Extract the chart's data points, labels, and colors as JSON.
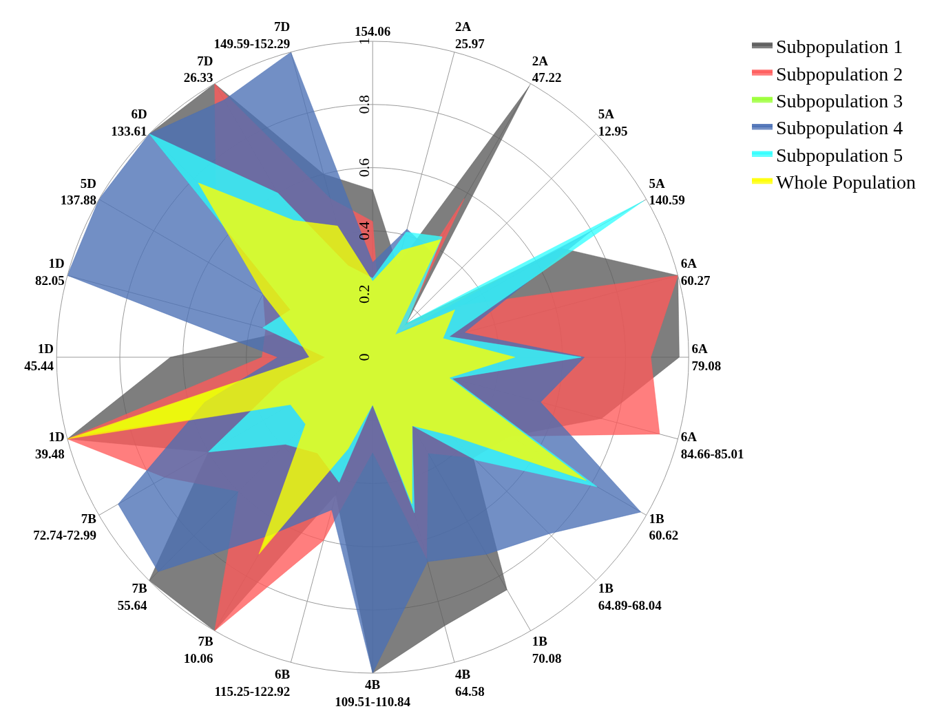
{
  "chart_data": {
    "type": "radar",
    "categories": [
      "154.06",
      "2A\n25.97",
      "2A\n47.22",
      "5A\n12.95",
      "5A\n140.59",
      "6A\n60.27",
      "6A\n79.08",
      "6A\n84.66-85.01",
      "1B\n60.62",
      "1B\n64.89-68.04",
      "1B\n70.08",
      "4B\n64.58",
      "4B\n109.51-110.84",
      "6B\n115.25-122.92",
      "7B\n10.06",
      "7B\n55.64",
      "7B\n72.74-72.99",
      "1D\n39.48",
      "1D\n45.44",
      "1D\n82.05",
      "5D\n137.88",
      "6D\n133.61",
      "7D\n26.33",
      "7D\n149.59-152.29"
    ],
    "series": [
      {
        "name": "Subpopulation 1",
        "color": "#5a5a5a",
        "values": [
          0.53,
          0.3,
          0.99,
          0.15,
          0.69,
          1.0,
          0.97,
          0.75,
          0.5,
          0.45,
          0.85,
          0.88,
          1.0,
          0.45,
          1.0,
          1.0,
          0.6,
          1.0,
          0.64,
          0.3,
          0.3,
          1.0,
          1.0,
          0.6
        ]
      },
      {
        "name": "Subpopulation 2",
        "color": "#ff5a5a",
        "values": [
          0.43,
          0.1,
          0.58,
          0.14,
          0.33,
          1.0,
          0.88,
          0.94,
          0.5,
          0.45,
          0.35,
          0.66,
          0.3,
          0.6,
          1.0,
          0.6,
          0.76,
          1.0,
          0.35,
          0.35,
          0.4,
          0.7,
          1.0,
          0.52
        ]
      },
      {
        "name": "Subpopulation 3",
        "color": "#99ff33",
        "values": [
          0.24,
          0.35,
          0.43,
          0.1,
          0.3,
          0.23,
          0.45,
          0.25,
          0.8,
          0.35,
          0.25,
          0.48,
          0.15,
          0.3,
          0.7,
          0.3,
          0.3,
          0.95,
          0.2,
          0.25,
          0.4,
          0.78,
          0.5,
          0.43
        ]
      },
      {
        "name": "Subpopulation 4",
        "color": "#4a6fb5",
        "values": [
          0.3,
          0.42,
          0.38,
          0.1,
          0.8,
          0.3,
          0.67,
          0.55,
          0.98,
          0.79,
          0.72,
          0.67,
          1.0,
          0.5,
          0.65,
          0.96,
          0.93,
          0.55,
          0.3,
          1.0,
          1.0,
          1.0,
          0.94,
          1.0
        ]
      },
      {
        "name": "Subpopulation 5",
        "color": "#33ffff",
        "values": [
          0.25,
          0.41,
          0.44,
          0.15,
          0.99,
          0.25,
          0.66,
          0.26,
          0.82,
          0.46,
          0.25,
          0.51,
          0.15,
          0.41,
          0.35,
          0.39,
          0.6,
          0.3,
          0.15,
          0.36,
          0.3,
          1.0,
          0.6,
          0.3
        ]
      },
      {
        "name": "Whole Population",
        "color": "#ffff00",
        "values": [
          0.24,
          0.35,
          0.43,
          0.1,
          0.3,
          0.23,
          0.45,
          0.25,
          0.78,
          0.35,
          0.25,
          0.48,
          0.15,
          0.3,
          0.72,
          0.3,
          0.3,
          1.0,
          0.2,
          0.25,
          0.4,
          0.78,
          0.5,
          0.43
        ]
      }
    ],
    "ylim": [
      0,
      1
    ],
    "yticks": [
      0,
      0.2,
      0.4,
      0.6,
      0.8,
      1
    ],
    "grid": true,
    "legend": "top right"
  }
}
